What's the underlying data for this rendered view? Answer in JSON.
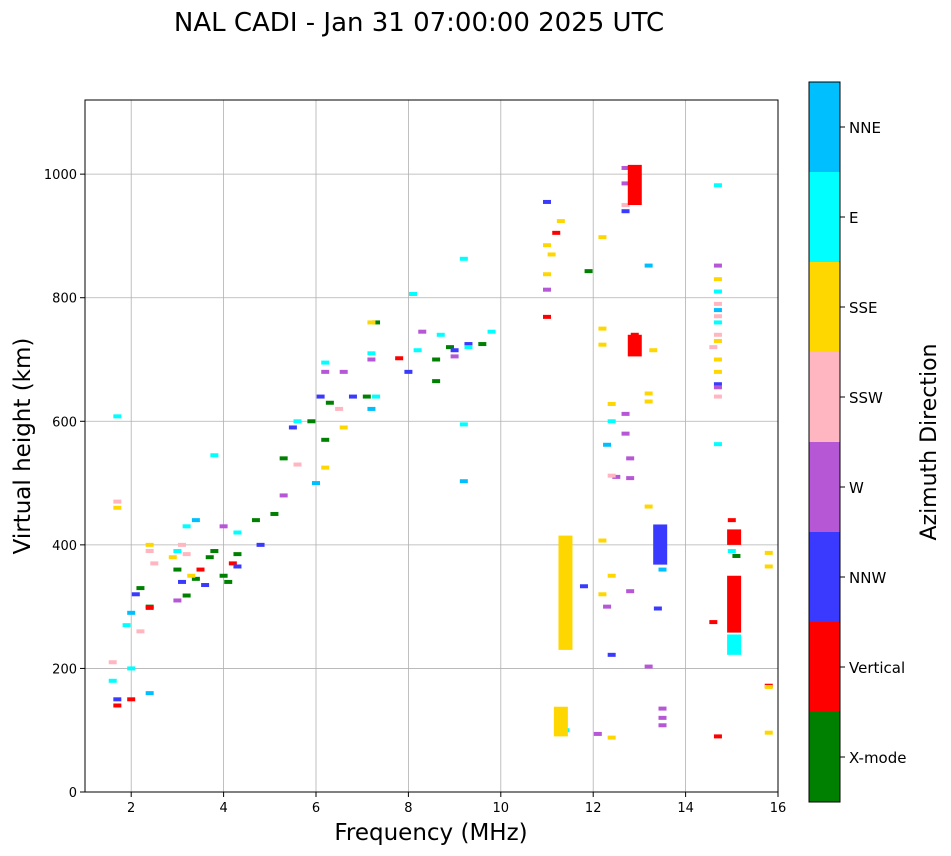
{
  "chart_data": {
    "type": "scatter",
    "title": "NAL CADI - Jan 31 07:00:00 2025 UTC",
    "xlabel": "Frequency (MHz)",
    "ylabel": "Virtual height (km)",
    "xlim": [
      1,
      16
    ],
    "ylim": [
      0,
      1120
    ],
    "xticks": [
      2,
      4,
      6,
      8,
      10,
      12,
      14,
      16
    ],
    "yticks": [
      0,
      200,
      400,
      600,
      800,
      1000
    ],
    "grid": true,
    "colorbar": {
      "label": "Azimuth Direction",
      "categories": [
        {
          "name": "X-mode",
          "color": "#008000"
        },
        {
          "name": "Vertical",
          "color": "#ff0000"
        },
        {
          "name": "NNW",
          "color": "#3a3aff"
        },
        {
          "name": "W",
          "color": "#b657d6"
        },
        {
          "name": "SSW",
          "color": "#ffb6c1"
        },
        {
          "name": "SSE",
          "color": "#ffd700"
        },
        {
          "name": "E",
          "color": "#00ffff"
        },
        {
          "name": "NNE",
          "color": "#00bfff"
        }
      ]
    },
    "series": [
      {
        "name": "X-mode",
        "points": [
          [
            3.4,
            345
          ],
          [
            3.7,
            380
          ],
          [
            4.1,
            340
          ],
          [
            4.3,
            385
          ],
          [
            4.7,
            440
          ],
          [
            5.3,
            540
          ],
          [
            5.9,
            600
          ],
          [
            6.3,
            630
          ],
          [
            7.1,
            640
          ],
          [
            8.6,
            665
          ],
          [
            8.6,
            700
          ],
          [
            9.6,
            725
          ],
          [
            11.9,
            843
          ],
          [
            15.1,
            382
          ],
          [
            2.4,
            300
          ],
          [
            3.0,
            360
          ],
          [
            3.2,
            318
          ],
          [
            2.2,
            330
          ],
          [
            4.0,
            350
          ],
          [
            5.1,
            450
          ],
          [
            6.2,
            570
          ],
          [
            7.3,
            760
          ],
          [
            8.9,
            720
          ],
          [
            3.8,
            390
          ]
        ]
      },
      {
        "name": "Vertical",
        "points": [
          [
            2.4,
            298
          ],
          [
            1.7,
            140
          ],
          [
            2.0,
            150
          ],
          [
            11.0,
            769
          ],
          [
            11.4,
            392
          ],
          [
            12.9,
            983
          ],
          [
            12.9,
            1010
          ],
          [
            12.9,
            715
          ],
          [
            12.9,
            740
          ],
          [
            14.6,
            275
          ],
          [
            14.7,
            90
          ],
          [
            15.0,
            280
          ],
          [
            15.0,
            320
          ],
          [
            15.0,
            410
          ],
          [
            15.0,
            440
          ],
          [
            15.8,
            172
          ],
          [
            7.8,
            702
          ],
          [
            3.5,
            360
          ],
          [
            4.2,
            370
          ],
          [
            11.2,
            905
          ]
        ]
      },
      {
        "name": "NNW",
        "points": [
          [
            1.7,
            150
          ],
          [
            2.1,
            320
          ],
          [
            3.1,
            340
          ],
          [
            3.6,
            335
          ],
          [
            4.3,
            365
          ],
          [
            4.8,
            400
          ],
          [
            5.5,
            590
          ],
          [
            6.1,
            640
          ],
          [
            6.8,
            640
          ],
          [
            8.0,
            680
          ],
          [
            9.0,
            715
          ],
          [
            9.3,
            725
          ],
          [
            11.0,
            955
          ],
          [
            11.8,
            333
          ],
          [
            12.4,
            222
          ],
          [
            12.7,
            940
          ],
          [
            12.9,
            960
          ],
          [
            13.4,
            297
          ],
          [
            13.5,
            380
          ],
          [
            13.5,
            420
          ],
          [
            14.7,
            660
          ]
        ]
      },
      {
        "name": "W",
        "points": [
          [
            3.0,
            310
          ],
          [
            4.0,
            430
          ],
          [
            5.3,
            480
          ],
          [
            6.2,
            680
          ],
          [
            6.6,
            680
          ],
          [
            7.2,
            700
          ],
          [
            8.3,
            745
          ],
          [
            9.0,
            705
          ],
          [
            11.0,
            813
          ],
          [
            12.3,
            300
          ],
          [
            12.5,
            510
          ],
          [
            12.7,
            1010
          ],
          [
            12.7,
            985
          ],
          [
            12.7,
            612
          ],
          [
            12.7,
            580
          ],
          [
            12.8,
            540
          ],
          [
            12.8,
            508
          ],
          [
            12.8,
            325
          ],
          [
            13.2,
            203
          ],
          [
            13.5,
            135
          ],
          [
            13.5,
            120
          ],
          [
            13.5,
            108
          ],
          [
            12.1,
            94
          ],
          [
            14.7,
            852
          ],
          [
            14.7,
            655
          ]
        ]
      },
      {
        "name": "SSW",
        "points": [
          [
            1.6,
            210
          ],
          [
            1.7,
            470
          ],
          [
            2.2,
            260
          ],
          [
            2.4,
            390
          ],
          [
            2.5,
            370
          ],
          [
            3.1,
            400
          ],
          [
            3.2,
            385
          ],
          [
            5.6,
            530
          ],
          [
            6.5,
            620
          ],
          [
            11.4,
            380
          ],
          [
            11.4,
            350
          ],
          [
            11.4,
            320
          ],
          [
            12.7,
            950
          ],
          [
            12.4,
            512
          ],
          [
            14.7,
            770
          ],
          [
            14.7,
            740
          ],
          [
            14.7,
            640
          ],
          [
            14.7,
            790
          ],
          [
            14.6,
            720
          ]
        ]
      },
      {
        "name": "SSE",
        "points": [
          [
            1.7,
            460
          ],
          [
            2.4,
            400
          ],
          [
            2.9,
            380
          ],
          [
            3.3,
            350
          ],
          [
            6.2,
            525
          ],
          [
            6.6,
            590
          ],
          [
            7.2,
            760
          ],
          [
            11.0,
            885
          ],
          [
            11.0,
            838
          ],
          [
            11.1,
            870
          ],
          [
            11.4,
            260
          ],
          [
            11.4,
            240
          ],
          [
            11.4,
            340
          ],
          [
            12.2,
            898
          ],
          [
            12.2,
            750
          ],
          [
            12.2,
            724
          ],
          [
            12.2,
            407
          ],
          [
            12.2,
            320
          ],
          [
            12.4,
            628
          ],
          [
            12.4,
            350
          ],
          [
            12.4,
            88
          ],
          [
            13.2,
            462
          ],
          [
            13.2,
            645
          ],
          [
            13.2,
            632
          ],
          [
            13.3,
            715
          ],
          [
            14.7,
            700
          ],
          [
            14.7,
            680
          ],
          [
            14.7,
            730
          ],
          [
            14.7,
            830
          ],
          [
            15.8,
            387
          ],
          [
            15.8,
            365
          ],
          [
            15.8,
            96
          ],
          [
            15.8,
            170
          ],
          [
            11.3,
            924
          ]
        ]
      },
      {
        "name": "E",
        "points": [
          [
            1.6,
            180
          ],
          [
            1.7,
            608
          ],
          [
            1.9,
            270
          ],
          [
            2.0,
            200
          ],
          [
            3.0,
            390
          ],
          [
            3.2,
            430
          ],
          [
            3.8,
            545
          ],
          [
            4.3,
            420
          ],
          [
            5.6,
            600
          ],
          [
            6.2,
            695
          ],
          [
            7.2,
            710
          ],
          [
            7.3,
            640
          ],
          [
            8.1,
            806
          ],
          [
            8.2,
            715
          ],
          [
            8.7,
            740
          ],
          [
            9.2,
            863
          ],
          [
            9.2,
            595
          ],
          [
            9.3,
            720
          ],
          [
            9.8,
            745
          ],
          [
            11.4,
            300
          ],
          [
            12.4,
            600
          ],
          [
            13.5,
            395
          ],
          [
            14.7,
            982
          ],
          [
            14.7,
            810
          ],
          [
            14.7,
            760
          ],
          [
            14.7,
            563
          ],
          [
            15.0,
            240
          ],
          [
            15.0,
            250
          ],
          [
            15.0,
            390
          ],
          [
            11.4,
            100
          ]
        ]
      },
      {
        "name": "NNE",
        "points": [
          [
            2.0,
            290
          ],
          [
            3.4,
            440
          ],
          [
            6.0,
            500
          ],
          [
            7.2,
            620
          ],
          [
            9.2,
            503
          ],
          [
            12.3,
            562
          ],
          [
            13.2,
            852
          ],
          [
            14.7,
            780
          ],
          [
            13.5,
            360
          ],
          [
            2.4,
            160
          ]
        ]
      }
    ],
    "bars": [
      {
        "series": "Vertical",
        "x": 12.9,
        "y0": 950,
        "y1": 1015
      },
      {
        "series": "Vertical",
        "x": 12.9,
        "y0": 705,
        "y1": 740
      },
      {
        "series": "NNW",
        "x": 13.45,
        "y0": 368,
        "y1": 433
      },
      {
        "series": "Vertical",
        "x": 15.05,
        "y0": 258,
        "y1": 350
      },
      {
        "series": "Vertical",
        "x": 15.05,
        "y0": 400,
        "y1": 425
      },
      {
        "series": "E",
        "x": 15.05,
        "y0": 222,
        "y1": 255
      },
      {
        "series": "SSE",
        "x": 11.4,
        "y0": 230,
        "y1": 415
      },
      {
        "series": "SSE",
        "x": 11.3,
        "y0": 90,
        "y1": 138
      }
    ]
  }
}
